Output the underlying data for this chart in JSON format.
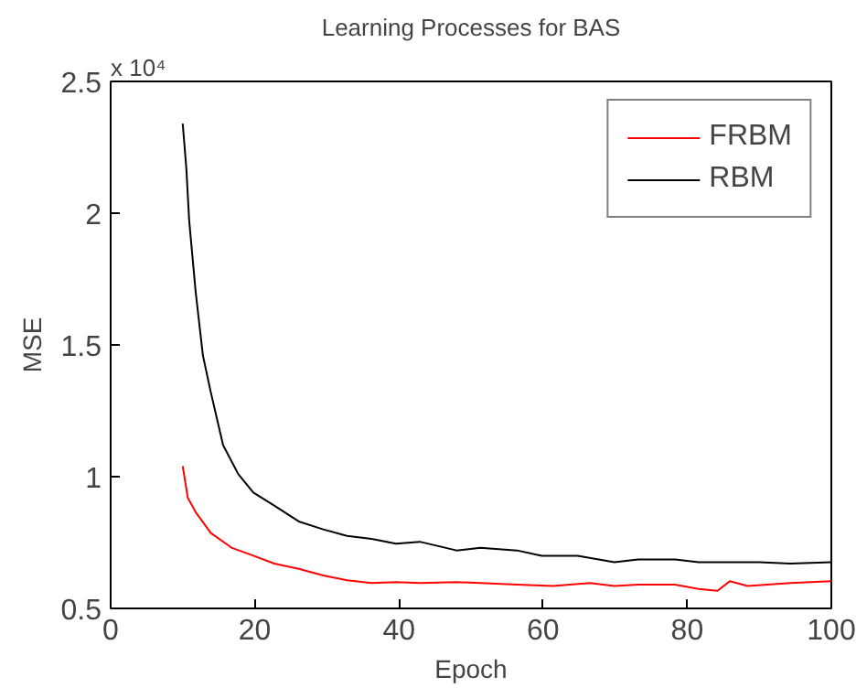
{
  "chart_data": {
    "type": "line",
    "title": "Learning Processes for BAS",
    "xlabel": "Epoch",
    "ylabel": "MSE",
    "annotations": [
      "x 10⁴"
    ],
    "xlim": [
      0,
      100
    ],
    "xticks": [
      0,
      20,
      40,
      60,
      80,
      100
    ],
    "ylim": [
      0.5,
      2.5
    ],
    "yticks": [
      0.5,
      1,
      1.5,
      2,
      2.5
    ],
    "grid": false,
    "legend": "top right",
    "series": [
      {
        "name": "FRBM",
        "color": "#ff0000",
        "x": [
          10,
          10.7,
          11.8,
          13.9,
          16.8,
          19.8,
          22.7,
          26.1,
          29.5,
          32.8,
          36.2,
          39.6,
          42.9,
          48,
          51.3,
          56.4,
          61.4,
          66.5,
          69.9,
          73.2,
          78.3,
          81.6,
          84.2,
          85.9,
          88.4,
          94.3,
          100
        ],
        "values": [
          1.04,
          0.92,
          0.865,
          0.786,
          0.73,
          0.7,
          0.67,
          0.65,
          0.625,
          0.607,
          0.596,
          0.6,
          0.596,
          0.6,
          0.596,
          0.59,
          0.585,
          0.596,
          0.585,
          0.59,
          0.59,
          0.574,
          0.567,
          0.603,
          0.585,
          0.596,
          0.603
        ]
      },
      {
        "name": "RBM",
        "color": "#000000",
        "x": [
          10,
          10.5,
          10.9,
          11.8,
          12.8,
          13.9,
          15.6,
          17.7,
          19.8,
          22.7,
          26.1,
          29.5,
          32.8,
          36.2,
          39.6,
          42.9,
          48,
          51.3,
          56.4,
          59.8,
          64.8,
          69.9,
          73.2,
          78.3,
          81.6,
          85,
          90,
          94.3,
          100
        ],
        "values": [
          2.34,
          2.17,
          1.97,
          1.7,
          1.46,
          1.32,
          1.12,
          1.01,
          0.94,
          0.89,
          0.83,
          0.8,
          0.775,
          0.764,
          0.746,
          0.753,
          0.72,
          0.73,
          0.72,
          0.7,
          0.7,
          0.675,
          0.686,
          0.686,
          0.675,
          0.675,
          0.675,
          0.67,
          0.675
        ]
      }
    ]
  }
}
